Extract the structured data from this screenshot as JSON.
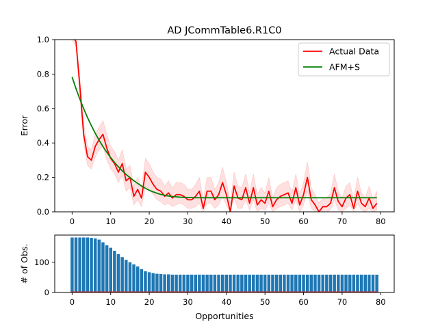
{
  "chart_data": [
    {
      "type": "line",
      "title": "AD JCommTable6.R1C0",
      "xlabel": "",
      "ylabel": "Error",
      "xlim": [
        -4.5,
        83.5
      ],
      "ylim": [
        0,
        1.0
      ],
      "x_ticks": [
        0,
        10,
        20,
        30,
        40,
        50,
        60,
        70,
        80
      ],
      "y_ticks": [
        0.0,
        0.2,
        0.4,
        0.6,
        0.8,
        1.0
      ],
      "y_tick_labels": [
        "0.0",
        "0.2",
        "0.4",
        "0.6",
        "0.8",
        "1.0"
      ],
      "legend_position": "top-right",
      "x": [
        0,
        1,
        2,
        3,
        4,
        5,
        6,
        7,
        8,
        9,
        10,
        11,
        12,
        13,
        14,
        15,
        16,
        17,
        18,
        19,
        20,
        21,
        22,
        23,
        24,
        25,
        26,
        27,
        28,
        29,
        30,
        31,
        32,
        33,
        34,
        35,
        36,
        37,
        38,
        39,
        40,
        41,
        42,
        43,
        44,
        45,
        46,
        47,
        48,
        49,
        50,
        51,
        52,
        53,
        54,
        55,
        56,
        57,
        58,
        59,
        60,
        61,
        62,
        63,
        64,
        65,
        66,
        67,
        68,
        69,
        70,
        71,
        72,
        73,
        74,
        75,
        76,
        77,
        78,
        79
      ],
      "series": [
        {
          "name": "Actual Data",
          "color": "#ff0000",
          "values": [
            1.02,
            0.99,
            0.73,
            0.45,
            0.32,
            0.3,
            0.38,
            0.42,
            0.45,
            0.37,
            0.31,
            0.28,
            0.23,
            0.28,
            0.18,
            0.2,
            0.09,
            0.13,
            0.08,
            0.23,
            0.2,
            0.16,
            0.13,
            0.12,
            0.09,
            0.11,
            0.08,
            0.1,
            0.1,
            0.09,
            0.07,
            0.07,
            0.09,
            0.12,
            0.02,
            0.12,
            0.12,
            0.07,
            0.1,
            0.17,
            0.1,
            0.0,
            0.15,
            0.08,
            0.07,
            0.14,
            0.05,
            0.14,
            0.04,
            0.07,
            0.05,
            0.12,
            0.03,
            0.07,
            0.09,
            0.1,
            0.11,
            0.05,
            0.14,
            0.04,
            0.1,
            0.2,
            0.07,
            0.04,
            0.0,
            0.03,
            0.03,
            0.05,
            0.14,
            0.06,
            0.03,
            0.08,
            0.1,
            0.02,
            0.12,
            0.05,
            0.03,
            0.08,
            0.02,
            0.05
          ],
          "band_lower": [
            1.0,
            0.96,
            0.68,
            0.4,
            0.27,
            0.25,
            0.32,
            0.36,
            0.38,
            0.3,
            0.25,
            0.22,
            0.17,
            0.21,
            0.12,
            0.14,
            0.04,
            0.07,
            0.03,
            0.15,
            0.13,
            0.1,
            0.07,
            0.06,
            0.04,
            0.05,
            0.03,
            0.04,
            0.05,
            0.04,
            0.02,
            0.02,
            0.03,
            0.05,
            0.0,
            0.05,
            0.05,
            0.02,
            0.04,
            0.09,
            0.04,
            0.0,
            0.08,
            0.02,
            0.02,
            0.07,
            0.01,
            0.07,
            0.0,
            0.02,
            0.01,
            0.05,
            0.0,
            0.02,
            0.03,
            0.04,
            0.05,
            0.01,
            0.07,
            0.0,
            0.04,
            0.12,
            0.02,
            0.0,
            0.0,
            0.0,
            0.0,
            0.01,
            0.07,
            0.01,
            0.0,
            0.02,
            0.04,
            0.0,
            0.05,
            0.01,
            0.0,
            0.02,
            0.0,
            0.01
          ],
          "band_upper": [
            1.0,
            1.0,
            0.79,
            0.51,
            0.38,
            0.36,
            0.45,
            0.49,
            0.53,
            0.45,
            0.38,
            0.35,
            0.3,
            0.36,
            0.25,
            0.27,
            0.15,
            0.2,
            0.14,
            0.31,
            0.28,
            0.23,
            0.2,
            0.19,
            0.15,
            0.18,
            0.14,
            0.17,
            0.17,
            0.16,
            0.13,
            0.13,
            0.16,
            0.2,
            0.07,
            0.2,
            0.2,
            0.13,
            0.17,
            0.26,
            0.17,
            0.05,
            0.23,
            0.15,
            0.14,
            0.22,
            0.11,
            0.22,
            0.1,
            0.14,
            0.11,
            0.2,
            0.08,
            0.14,
            0.16,
            0.17,
            0.18,
            0.11,
            0.22,
            0.1,
            0.17,
            0.29,
            0.14,
            0.1,
            0.05,
            0.08,
            0.08,
            0.11,
            0.22,
            0.12,
            0.08,
            0.15,
            0.17,
            0.07,
            0.2,
            0.11,
            0.08,
            0.15,
            0.07,
            0.12
          ]
        },
        {
          "name": "AFM+S",
          "color": "#008000",
          "values": [
            0.783,
            0.716,
            0.655,
            0.599,
            0.547,
            0.5,
            0.456,
            0.416,
            0.379,
            0.346,
            0.315,
            0.287,
            0.262,
            0.238,
            0.217,
            0.198,
            0.181,
            0.165,
            0.15,
            0.137,
            0.125,
            0.116,
            0.108,
            0.101,
            0.096,
            0.092,
            0.089,
            0.087,
            0.085,
            0.084,
            0.083,
            0.083,
            0.082,
            0.082,
            0.082,
            0.082,
            0.082,
            0.082,
            0.082,
            0.082,
            0.082,
            0.082,
            0.082,
            0.082,
            0.082,
            0.082,
            0.082,
            0.082,
            0.082,
            0.082,
            0.082,
            0.082,
            0.082,
            0.082,
            0.082,
            0.082,
            0.082,
            0.082,
            0.082,
            0.082,
            0.082,
            0.082,
            0.082,
            0.082,
            0.082,
            0.082,
            0.082,
            0.082,
            0.082,
            0.082,
            0.082,
            0.082,
            0.082,
            0.082,
            0.082,
            0.082,
            0.082,
            0.082,
            0.082,
            0.082
          ]
        }
      ]
    },
    {
      "type": "bar",
      "title": "",
      "xlabel": "Opportunities",
      "ylabel": "# of Obs.",
      "xlim": [
        -4.5,
        83.5
      ],
      "ylim": [
        0,
        190
      ],
      "x_ticks": [
        0,
        10,
        20,
        30,
        40,
        50,
        60,
        70,
        80
      ],
      "y_ticks": [
        0,
        100
      ],
      "bar_color": "#1f77b4",
      "baseline_color": "#d62728",
      "x": [
        0,
        1,
        2,
        3,
        4,
        5,
        6,
        7,
        8,
        9,
        10,
        11,
        12,
        13,
        14,
        15,
        16,
        17,
        18,
        19,
        20,
        21,
        22,
        23,
        24,
        25,
        26,
        27,
        28,
        29,
        30,
        31,
        32,
        33,
        34,
        35,
        36,
        37,
        38,
        39,
        40,
        41,
        42,
        43,
        44,
        45,
        46,
        47,
        48,
        49,
        50,
        51,
        52,
        53,
        54,
        55,
        56,
        57,
        58,
        59,
        60,
        61,
        62,
        63,
        64,
        65,
        66,
        67,
        68,
        69,
        70,
        71,
        72,
        73,
        74,
        75,
        76,
        77,
        78,
        79
      ],
      "values": [
        182,
        182,
        182,
        182,
        182,
        181,
        179,
        175,
        166,
        156,
        148,
        138,
        127,
        117,
        108,
        100,
        93,
        86,
        77,
        70,
        67,
        64,
        62,
        61,
        60,
        60,
        59,
        59,
        59,
        59,
        59,
        59,
        59,
        59,
        59,
        59,
        59,
        59,
        59,
        59,
        59,
        59,
        59,
        59,
        59,
        59,
        59,
        59,
        59,
        59,
        59,
        59,
        59,
        59,
        59,
        59,
        59,
        59,
        59,
        59,
        59,
        59,
        59,
        59,
        59,
        59,
        59,
        59,
        59,
        59,
        59,
        59,
        59,
        59,
        59,
        59,
        59,
        59,
        59,
        59
      ]
    }
  ]
}
